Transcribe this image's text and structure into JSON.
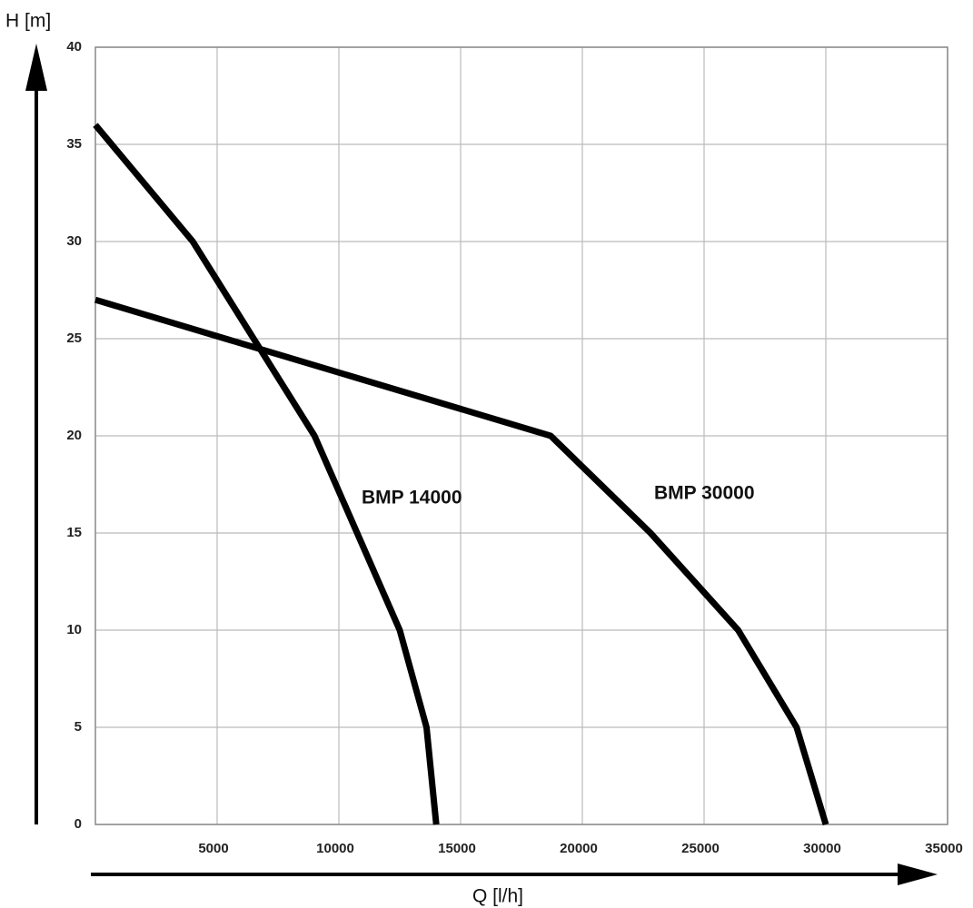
{
  "chart_data": {
    "type": "line",
    "y_label": "H [m]",
    "x_label": "Q [l/h]",
    "xlim": [
      0,
      35000
    ],
    "ylim": [
      0,
      40
    ],
    "xticks": [
      5000,
      10000,
      15000,
      20000,
      25000,
      30000,
      35000
    ],
    "yticks": [
      0,
      5,
      10,
      15,
      20,
      25,
      30,
      35,
      40
    ],
    "grid": true,
    "series": [
      {
        "name": "BMP 14000",
        "color": "#000000",
        "x": [
          0,
          4000,
          9000,
          12500,
          13600,
          14000
        ],
        "values": [
          36,
          30,
          20,
          10,
          5,
          0
        ]
      },
      {
        "name": "BMP 30000",
        "color": "#000000",
        "x": [
          0,
          18700,
          22800,
          26400,
          28800,
          30000
        ],
        "values": [
          27,
          20,
          15,
          10,
          5,
          0
        ]
      }
    ]
  }
}
